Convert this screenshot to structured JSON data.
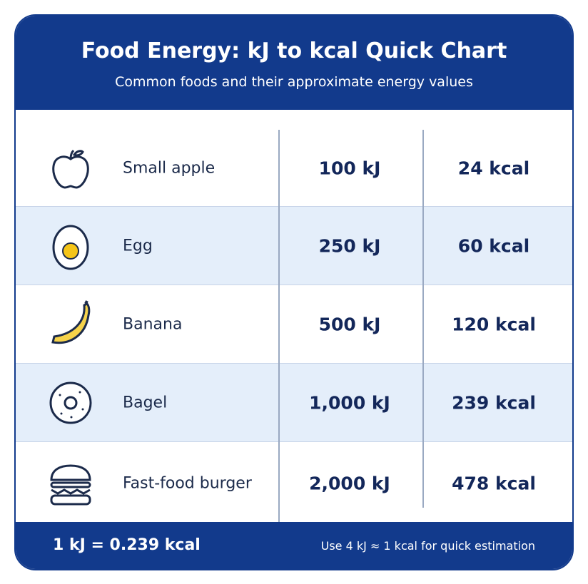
{
  "header": {
    "title": "Food Energy: kJ to kcal Quick Chart",
    "subtitle": "Common foods and their approximate energy values"
  },
  "table": {
    "rows": [
      [
        "Small apple",
        "100 kJ",
        "24 kcal"
      ],
      [
        "Egg",
        "250 kJ",
        "60 kcal"
      ],
      [
        "Banana",
        "500 kJ",
        "120 kcal"
      ],
      [
        "Bagel",
        "1,000 kJ",
        "239 kcal"
      ],
      [
        "Fast-food burger",
        "2,000 kJ",
        "478 kcal"
      ]
    ]
  },
  "footer": {
    "left": "1 kJ = 0.239 kcal",
    "right": "Use 4 kJ ≈ 1 kcal for quick estimation"
  }
}
